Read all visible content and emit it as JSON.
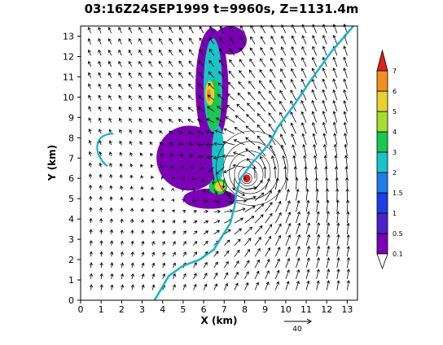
{
  "chart_data": {
    "type": "heatmap",
    "title": "03:16Z24SEP1999  t=9960s,  Z=1131.4m",
    "xlabel": "X (km)",
    "ylabel": "Y (km)",
    "xlim": [
      0,
      13.5
    ],
    "ylim": [
      0,
      13.5
    ],
    "x_ticks": [
      "0",
      "1",
      "2",
      "3",
      "4",
      "5",
      "6",
      "7",
      "8",
      "9",
      "10",
      "11",
      "12",
      "13"
    ],
    "y_ticks": [
      "0",
      "1",
      "2",
      "3",
      "4",
      "5",
      "6",
      "7",
      "8",
      "9",
      "10",
      "11",
      "12",
      "13"
    ],
    "colorbar": {
      "labels": [
        "0.1",
        "0.5",
        "1",
        "1.5",
        "2",
        "3",
        "4",
        "5",
        "6",
        "7"
      ],
      "colors": [
        "#7a00b4",
        "#4a22c8",
        "#1f3de6",
        "#1e7fe8",
        "#18c4c8",
        "#18c850",
        "#a8dc30",
        "#e8d030",
        "#f09020",
        "#e02020"
      ]
    },
    "reference_vector": {
      "label": "40"
    },
    "contour_line_color": "#18b4c8",
    "wind_vortex_center": [
      8.1,
      6.0
    ],
    "coastline": [
      [
        3.6,
        0
      ],
      [
        3.9,
        0.5
      ],
      [
        4.3,
        1.2
      ],
      [
        5.0,
        1.7
      ],
      [
        5.8,
        2.0
      ],
      [
        6.5,
        2.5
      ],
      [
        7.3,
        3.8
      ],
      [
        7.5,
        4.6
      ],
      [
        7.6,
        5.3
      ],
      [
        7.8,
        6.0
      ],
      [
        8.4,
        6.8
      ],
      [
        9.2,
        7.7
      ],
      [
        9.6,
        8.5
      ],
      [
        10.4,
        9.6
      ],
      [
        11.2,
        10.8
      ],
      [
        12.2,
        12.2
      ],
      [
        13.3,
        13.5
      ]
    ],
    "shaded_field": [
      {
        "level": 0.1,
        "cx": 6.4,
        "cy": 10.5,
        "rx": 0.8,
        "ry": 2.9
      },
      {
        "level": 0.1,
        "cx": 5.3,
        "cy": 7.0,
        "rx": 1.6,
        "ry": 1.6
      },
      {
        "level": 0.1,
        "cx": 6.3,
        "cy": 5.0,
        "rx": 1.3,
        "ry": 0.5
      },
      {
        "level": 0.1,
        "cx": 7.3,
        "cy": 12.8,
        "rx": 0.8,
        "ry": 0.7
      },
      {
        "level": 2,
        "cx": 6.45,
        "cy": 10.6,
        "rx": 0.45,
        "ry": 2.3
      },
      {
        "level": 3,
        "cx": 6.5,
        "cy": 9.6,
        "rx": 0.35,
        "ry": 1.3
      },
      {
        "level": 5,
        "cx": 6.3,
        "cy": 10.2,
        "rx": 0.22,
        "ry": 0.6
      },
      {
        "level": 6,
        "cx": 6.25,
        "cy": 10.1,
        "rx": 0.1,
        "ry": 0.3
      },
      {
        "level": 2,
        "cx": 6.7,
        "cy": 7.2,
        "rx": 0.3,
        "ry": 1.4
      },
      {
        "level": 3,
        "cx": 6.7,
        "cy": 5.6,
        "rx": 0.45,
        "ry": 0.4
      },
      {
        "level": 5,
        "cx": 6.8,
        "cy": 5.6,
        "rx": 0.25,
        "ry": 0.25
      },
      {
        "level": 7,
        "cx": 8.1,
        "cy": 6.0,
        "rx": 0.18,
        "ry": 0.2
      }
    ]
  }
}
